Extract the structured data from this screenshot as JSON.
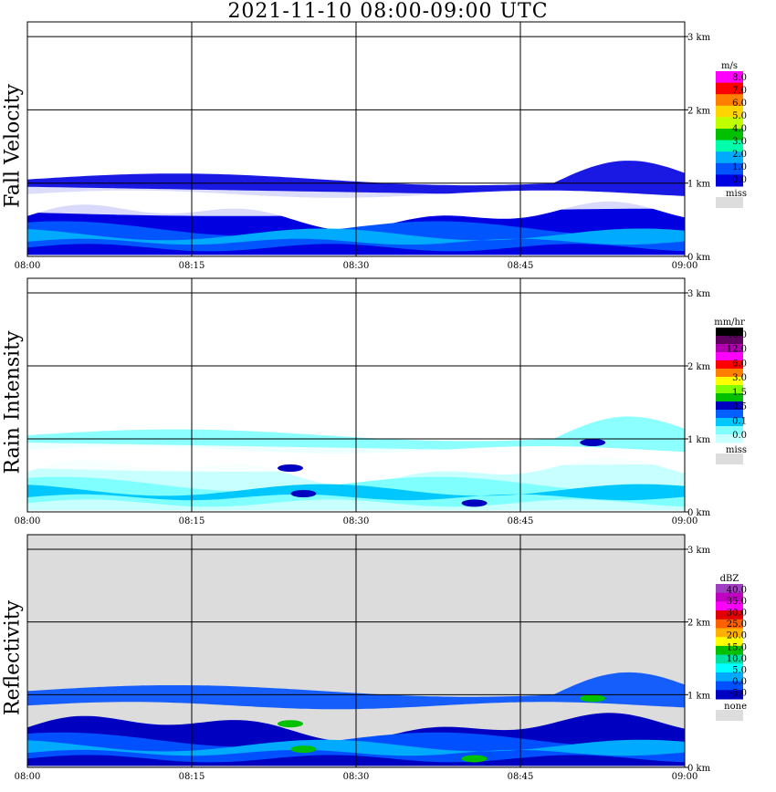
{
  "title": "2021-11-10   08:00-09:00 UTC",
  "chart_data": [
    {
      "type": "heatmap",
      "ylabel": "Fall Velocity",
      "x_ticks": [
        "08:00",
        "08:15",
        "08:30",
        "08:45",
        "09:00"
      ],
      "y_ticks": [
        "0 km",
        "1 km",
        "2 km",
        "3 km"
      ],
      "legend": {
        "unit": "m/s",
        "labels": [
          "8.0",
          "7.0",
          "6.0",
          "5.0",
          "4.0",
          "3.0",
          "2.0",
          "1.0",
          "0.0"
        ],
        "colors": [
          "#ff00ff",
          "#ff0000",
          "#ff8000",
          "#ffd400",
          "#c0ff00",
          "#00c000",
          "#00ffaa",
          "#00aaff",
          "#0055ff",
          "#0000e0"
        ],
        "miss_label": "miss",
        "miss_color": "#dddddd"
      }
    },
    {
      "type": "heatmap",
      "ylabel": "Rain Intensity",
      "x_ticks": [
        "08:00",
        "08:15",
        "08:30",
        "08:45",
        "09:00"
      ],
      "y_ticks": [
        "0 km",
        "1 km",
        "2 km",
        "3 km"
      ],
      "legend": {
        "unit": "mm/hr",
        "labels": [
          "48.0",
          "12.0",
          "6.0",
          "3.0",
          "1.5",
          "0.5",
          "0.1",
          "0.0"
        ],
        "colors": [
          "#000000",
          "#600060",
          "#b000b0",
          "#ff00ff",
          "#ff0000",
          "#ff8000",
          "#ffff00",
          "#80ff00",
          "#00c000",
          "#0000c0",
          "#0060ff",
          "#00c8ff",
          "#80ffff",
          "#c8ffff"
        ],
        "miss_label": "miss",
        "miss_color": "#dddddd"
      }
    },
    {
      "type": "heatmap",
      "ylabel": "Reflectivity",
      "x_ticks": [
        "08:00",
        "08:15",
        "08:30",
        "08:45",
        "09:00"
      ],
      "y_ticks": [
        "0 km",
        "1 km",
        "2 km",
        "3 km"
      ],
      "legend": {
        "unit": "dBZ",
        "labels": [
          "40.0",
          "35.0",
          "30.0",
          "25.0",
          "20.0",
          "15.0",
          "10.0",
          "5.0",
          "0.0",
          "-5.0"
        ],
        "colors": [
          "#a040c0",
          "#c000c0",
          "#ff00ff",
          "#e00000",
          "#ff6000",
          "#ffb000",
          "#ffff00",
          "#00c000",
          "#00e0a0",
          "#00ffff",
          "#00aaff",
          "#0050ff",
          "#0000c0"
        ],
        "miss_label": "none",
        "miss_color": "#dddddd"
      }
    }
  ]
}
